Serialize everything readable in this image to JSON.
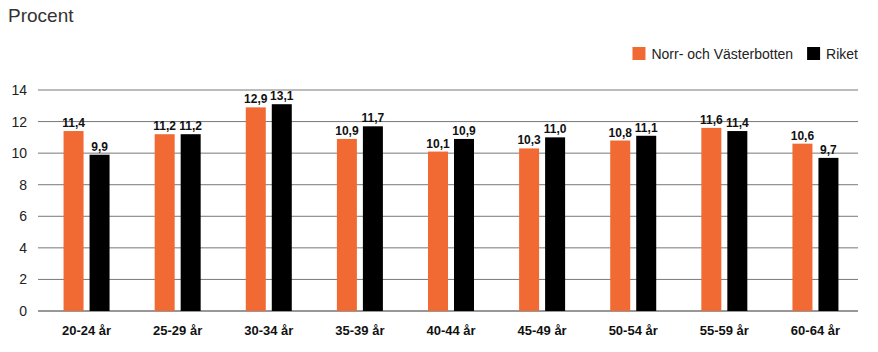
{
  "chart_data": {
    "type": "bar",
    "y_label": "Procent",
    "categories": [
      "20-24 år",
      "25-29 år",
      "30-34 år",
      "35-39 år",
      "40-44 år",
      "45-49 år",
      "50-54 år",
      "55-59 år",
      "60-64 år"
    ],
    "series": [
      {
        "name": "Norr- och Västerbotten",
        "color": "#f26a33",
        "values": [
          11.4,
          11.2,
          12.9,
          10.9,
          10.1,
          10.3,
          10.8,
          11.6,
          10.6
        ],
        "value_labels": [
          "11,4",
          "11,2",
          "12,9",
          "10,9",
          "10,1",
          "10,3",
          "10,8",
          "11,6",
          "10,6"
        ]
      },
      {
        "name": "Riket",
        "color": "#000000",
        "values": [
          9.9,
          11.2,
          13.1,
          11.7,
          10.9,
          11.0,
          11.1,
          11.4,
          9.7
        ],
        "value_labels": [
          "9,9",
          "11,2",
          "13,1",
          "11,7",
          "10,9",
          "11,0",
          "11,1",
          "11,4",
          "9,7"
        ]
      }
    ],
    "ylim": [
      0,
      14
    ],
    "yticks": [
      0,
      2,
      4,
      6,
      8,
      10,
      12,
      14
    ],
    "grid": true,
    "legend": "top-right",
    "data_labels": true
  }
}
